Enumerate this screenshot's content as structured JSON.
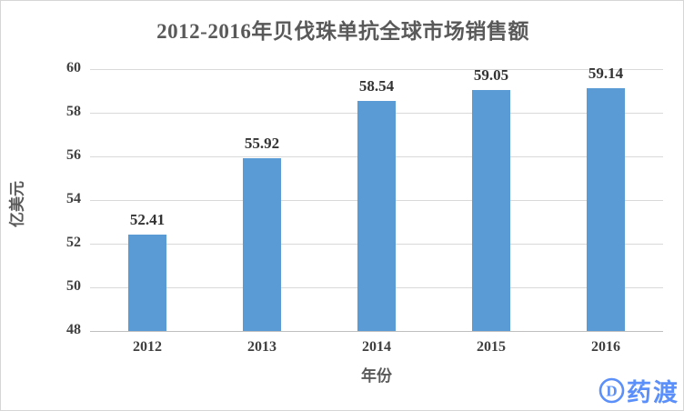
{
  "chart_data": {
    "type": "bar",
    "title": "2012-2016年贝伐珠单抗全球市场销售额",
    "categories": [
      "2012",
      "2013",
      "2014",
      "2015",
      "2016"
    ],
    "values": [
      52.41,
      55.92,
      58.54,
      59.05,
      59.14
    ],
    "xlabel": "年份",
    "ylabel": "亿美元",
    "ylim": [
      48,
      60
    ],
    "yticks": [
      60,
      58,
      56,
      54,
      52,
      50,
      48
    ],
    "grid": true,
    "legend_position": "none",
    "bar_color": "#5b9bd5",
    "gridline_color": "#d9d9d9"
  },
  "watermark": {
    "logo_letter": "D",
    "text": "药渡",
    "color": "#5b8ff9"
  }
}
